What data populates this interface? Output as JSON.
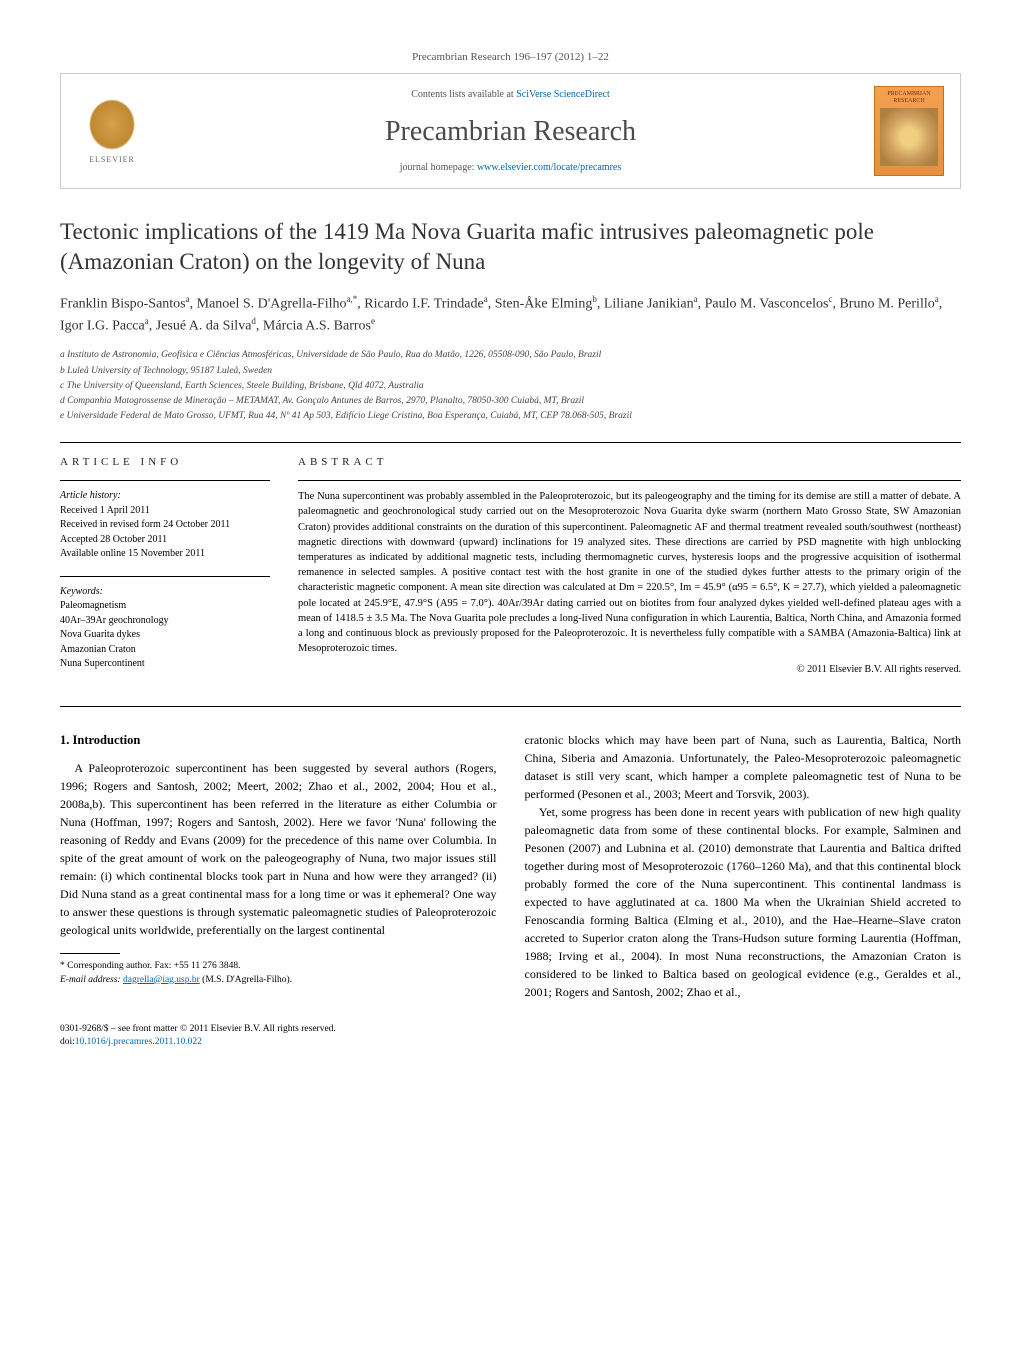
{
  "journal_ref": "Precambrian Research 196–197 (2012) 1–22",
  "header": {
    "contents_prefix": "Contents lists available at ",
    "contents_link": "SciVerse ScienceDirect",
    "journal_title": "Precambrian Research",
    "homepage_prefix": "journal homepage: ",
    "homepage_link": "www.elsevier.com/locate/precamres",
    "elsevier_label": "ELSEVIER",
    "cover_title": "PRECAMBRIAN RESEARCH"
  },
  "article": {
    "title": "Tectonic implications of the 1419 Ma Nova Guarita mafic intrusives paleomagnetic pole (Amazonian Craton) on the longevity of Nuna",
    "authors_html": "Franklin Bispo-Santos<sup>a</sup>, Manoel S. D'Agrella-Filho<sup>a,*</sup>, Ricardo I.F. Trindade<sup>a</sup>, Sten-Åke Elming<sup>b</sup>, Liliane Janikian<sup>a</sup>, Paulo M. Vasconcelos<sup>c</sup>, Bruno M. Perillo<sup>a</sup>, Igor I.G. Pacca<sup>a</sup>, Jesué A. da Silva<sup>d</sup>, Márcia A.S. Barros<sup>e</sup>",
    "affiliations": [
      "a Instituto de Astronomia, Geofísica e Ciências Atmosféricas, Universidade de São Paulo, Rua do Matão, 1226, 05508-090, São Paulo, Brazil",
      "b Luleå University of Technology, 95187 Luleå, Sweden",
      "c The University of Queensland, Earth Sciences, Steele Building, Brisbane, Qld 4072, Australia",
      "d Companhia Matogrossense de Mineração – METAMAT, Av. Gonçalo Antunes de Barros, 2970, Planalto, 78050-300 Cuiabá, MT, Brazil",
      "e Universidade Federal de Mato Grosso, UFMT, Rua 44, Nº 41 Ap 503, Edifício Liege Cristina, Boa Esperança, Cuiabá, MT, CEP 78.068-505, Brazil"
    ]
  },
  "info": {
    "heading": "ARTICLE INFO",
    "history_label": "Article history:",
    "history": [
      "Received 1 April 2011",
      "Received in revised form 24 October 2011",
      "Accepted 28 October 2011",
      "Available online 15 November 2011"
    ],
    "keywords_label": "Keywords:",
    "keywords": [
      "Paleomagnetism",
      "40Ar–39Ar geochronology",
      "Nova Guarita dykes",
      "Amazonian Craton",
      "Nuna Supercontinent"
    ]
  },
  "abstract": {
    "heading": "ABSTRACT",
    "text": "The Nuna supercontinent was probably assembled in the Paleoproterozoic, but its paleogeography and the timing for its demise are still a matter of debate. A paleomagnetic and geochronological study carried out on the Mesoproterozoic Nova Guarita dyke swarm (northern Mato Grosso State, SW Amazonian Craton) provides additional constraints on the duration of this supercontinent. Paleomagnetic AF and thermal treatment revealed south/southwest (northeast) magnetic directions with downward (upward) inclinations for 19 analyzed sites. These directions are carried by PSD magnetite with high unblocking temperatures as indicated by additional magnetic tests, including thermomagnetic curves, hysteresis loops and the progressive acquisition of isothermal remanence in selected samples. A positive contact test with the host granite in one of the studied dykes further attests to the primary origin of the characteristic magnetic component. A mean site direction was calculated at Dm = 220.5°, Im = 45.9° (α95 = 6.5°, K = 27.7), which yielded a paleomagnetic pole located at 245.9°E, 47.9°S (A95 = 7.0°). 40Ar/39Ar dating carried out on biotites from four analyzed dykes yielded well-defined plateau ages with a mean of 1418.5 ± 3.5 Ma. The Nova Guarita pole precludes a long-lived Nuna configuration in which Laurentia, Baltica, North China, and Amazonia formed a long and continuous block as previously proposed for the Paleoproterozoic. It is nevertheless fully compatible with a SAMBA (Amazonia-Baltica) link at Mesoproterozoic times.",
    "copyright": "© 2011 Elsevier B.V. All rights reserved."
  },
  "body": {
    "section_number": "1.",
    "section_title": "Introduction",
    "col1_p1": "A Paleoproterozoic supercontinent has been suggested by several authors (Rogers, 1996; Rogers and Santosh, 2002; Meert, 2002; Zhao et al., 2002, 2004; Hou et al., 2008a,b). This supercontinent has been referred in the literature as either Columbia or Nuna (Hoffman, 1997; Rogers and Santosh, 2002). Here we favor 'Nuna' following the reasoning of Reddy and Evans (2009) for the precedence of this name over Columbia. In spite of the great amount of work on the paleogeography of Nuna, two major issues still remain: (i) which continental blocks took part in Nuna and how were they arranged? (ii) Did Nuna stand as a great continental mass for a long time or was it ephemeral? One way to answer these questions is through systematic paleomagnetic studies of Paleoproterozoic geological units worldwide, preferentially on the largest continental",
    "col2_p1": "cratonic blocks which may have been part of Nuna, such as Laurentia, Baltica, North China, Siberia and Amazonia. Unfortunately, the Paleo-Mesoproterozoic paleomagnetic dataset is still very scant, which hamper a complete paleomagnetic test of Nuna to be performed (Pesonen et al., 2003; Meert and Torsvik, 2003).",
    "col2_p2": "Yet, some progress has been done in recent years with publication of new high quality paleomagnetic data from some of these continental blocks. For example, Salminen and Pesonen (2007) and Lubnina et al. (2010) demonstrate that Laurentia and Baltica drifted together during most of Mesoproterozoic (1760–1260 Ma), and that this continental block probably formed the core of the Nuna supercontinent. This continental landmass is expected to have agglutinated at ca. 1800 Ma when the Ukrainian Shield accreted to Fenoscandia forming Baltica (Elming et al., 2010), and the Hae–Hearne–Slave craton accreted to Superior craton along the Trans-Hudson suture forming Laurentia (Hoffman, 1988; Irving et al., 2004). In most Nuna reconstructions, the Amazonian Craton is considered to be linked to Baltica based on geological evidence (e.g., Geraldes et al., 2001; Rogers and Santosh, 2002; Zhao et al.,"
  },
  "footnote": {
    "corr": "* Corresponding author. Fax: +55 11 276 3848.",
    "email_label": "E-mail address: ",
    "email": "dagrella@iag.usp.br",
    "email_suffix": " (M.S. D'Agrella-Filho)."
  },
  "footer": {
    "line1": "0301-9268/$ – see front matter © 2011 Elsevier B.V. All rights reserved.",
    "doi_prefix": "doi:",
    "doi": "10.1016/j.precamres.2011.10.022"
  },
  "colors": {
    "link": "#0066aa",
    "text": "#000000",
    "muted": "#555555",
    "elsevier_orange": "#d4a050",
    "cover_orange": "#f5a050"
  }
}
